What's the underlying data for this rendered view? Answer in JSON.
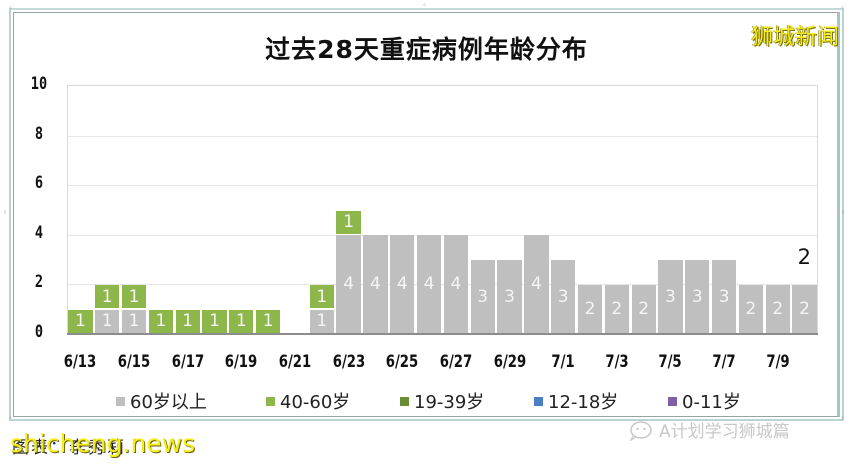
{
  "title": "过去28天重症病例年龄分布",
  "brand_label": "狮城新闻",
  "caption": "图表：李秀莉",
  "watermark": "shicheng.news",
  "wechat_label": "A计划学习狮城篇",
  "y_ticks": [
    "10",
    "8",
    "6",
    "4",
    "2",
    "0"
  ],
  "x_ticks": [
    "6/13",
    "6/15",
    "6/17",
    "6/19",
    "6/21",
    "6/23",
    "6/25",
    "6/27",
    "6/29",
    "7/1",
    "7/3",
    "7/5",
    "7/7",
    "7/9"
  ],
  "legend": [
    {
      "label": "60岁以上",
      "color": "#bfbfbf"
    },
    {
      "label": "40-60岁",
      "color": "#8db64b"
    },
    {
      "label": "19-39岁",
      "color": "#6a8e35"
    },
    {
      "label": "12-18岁",
      "color": "#4a7fc1"
    },
    {
      "label": "0-11岁",
      "color": "#7f5fa8"
    }
  ],
  "last_total_label": "2",
  "chart_data": {
    "type": "bar",
    "stacked": true,
    "title": "过去28天重症病例年龄分布",
    "xlabel": "",
    "ylabel": "",
    "ylim": [
      0,
      10
    ],
    "yticks": [
      0,
      2,
      4,
      6,
      8,
      10
    ],
    "grid": true,
    "legend_position": "bottom",
    "categories": [
      "6/13",
      "6/14",
      "6/15",
      "6/16",
      "6/17",
      "6/18",
      "6/19",
      "6/20",
      "6/21",
      "6/22",
      "6/23",
      "6/24",
      "6/25",
      "6/26",
      "6/27",
      "6/28",
      "6/29",
      "6/30",
      "7/1",
      "7/2",
      "7/3",
      "7/4",
      "7/5",
      "7/6",
      "7/7",
      "7/8",
      "7/9",
      "7/10"
    ],
    "series": [
      {
        "name": "60岁以上",
        "color": "#bfbfbf",
        "values": [
          0,
          1,
          1,
          0,
          0,
          0,
          0,
          0,
          0,
          1,
          4,
          4,
          4,
          4,
          4,
          3,
          3,
          4,
          3,
          2,
          2,
          2,
          3,
          3,
          3,
          2,
          2,
          2
        ]
      },
      {
        "name": "40-60岁",
        "color": "#8db64b",
        "values": [
          1,
          1,
          1,
          1,
          1,
          1,
          1,
          1,
          0,
          1,
          1,
          0,
          0,
          0,
          0,
          0,
          0,
          0,
          0,
          0,
          0,
          0,
          0,
          0,
          0,
          0,
          0,
          0
        ]
      },
      {
        "name": "19-39岁",
        "color": "#6a8e35",
        "values": [
          0,
          0,
          0,
          0,
          0,
          0,
          0,
          0,
          0,
          0,
          0,
          0,
          0,
          0,
          0,
          0,
          0,
          0,
          0,
          0,
          0,
          0,
          0,
          0,
          0,
          0,
          0,
          0
        ]
      },
      {
        "name": "12-18岁",
        "color": "#4a7fc1",
        "values": [
          0,
          0,
          0,
          0,
          0,
          0,
          0,
          0,
          0,
          0,
          0,
          0,
          0,
          0,
          0,
          0,
          0,
          0,
          0,
          0,
          0,
          0,
          0,
          0,
          0,
          0,
          0,
          0
        ]
      },
      {
        "name": "0-11岁",
        "color": "#7f5fa8",
        "values": [
          0,
          0,
          0,
          0,
          0,
          0,
          0,
          0,
          0,
          0,
          0,
          0,
          0,
          0,
          0,
          0,
          0,
          0,
          0,
          0,
          0,
          0,
          0,
          0,
          0,
          0,
          0,
          0
        ]
      }
    ],
    "annotations": [
      {
        "x": "7/10",
        "text": "2"
      }
    ]
  }
}
